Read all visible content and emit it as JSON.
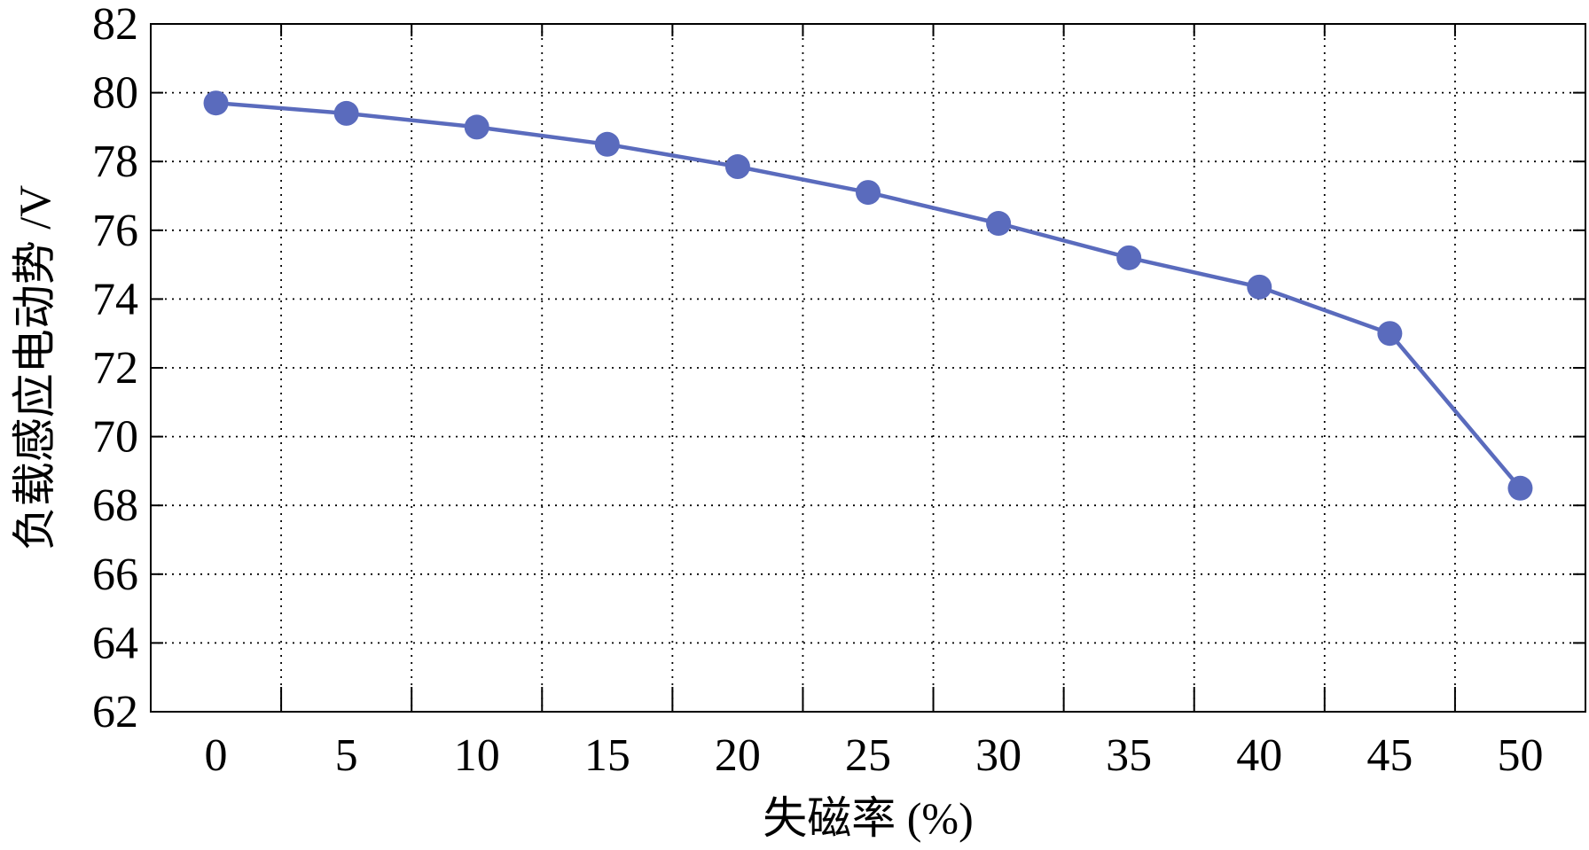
{
  "chart_data": {
    "type": "line",
    "title": "",
    "xlabel": "失磁率 (%)",
    "ylabel": "负载感应电动势 /V",
    "x": [
      0,
      5,
      10,
      15,
      20,
      25,
      30,
      35,
      40,
      45,
      50
    ],
    "series": [
      {
        "values": [
          79.7,
          79.4,
          79.0,
          78.5,
          77.85,
          77.1,
          76.2,
          75.2,
          74.35,
          73.0,
          68.5
        ]
      }
    ],
    "xlim": [
      -2.5,
      52.5
    ],
    "ylim": [
      62,
      82
    ],
    "xticks": [
      "0",
      "5",
      "10",
      "15",
      "20",
      "25",
      "30",
      "35",
      "40",
      "45",
      "50"
    ],
    "yticks": [
      "62",
      "64",
      "66",
      "68",
      "70",
      "72",
      "74",
      "76",
      "78",
      "80",
      "82"
    ],
    "grid": true,
    "grid_style": "dotted",
    "line_color": "#5a6bbd",
    "marker": "circle"
  }
}
